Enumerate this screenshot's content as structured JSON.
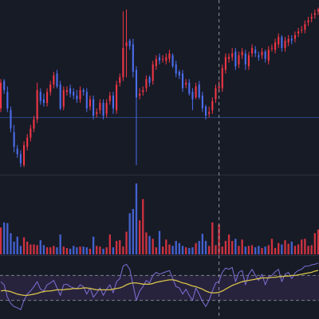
{
  "theme": {
    "background": "#171b26",
    "rsi_band_fill": "#2a2540",
    "up_color": "#f23645",
    "down_color": "#4c6ef0",
    "separator": "#2b2f3c",
    "crosshair": "#b2b5be",
    "rsi_line": "#7e6fd6",
    "signal_line": "#d6c34a",
    "rsi_band_line": "#7a7f8c",
    "price_level_line": "#2c4a8a"
  },
  "chart_data": [
    {
      "type": "candlestick",
      "panel": "price",
      "grid": false,
      "x": [
        1,
        2,
        3,
        4,
        5,
        6,
        7,
        8,
        9,
        10,
        11,
        12,
        13,
        14,
        15,
        16,
        17,
        18,
        19,
        20,
        21,
        22,
        23,
        24,
        25,
        26,
        27,
        28,
        29,
        30,
        31,
        32,
        33,
        34,
        35,
        36,
        37,
        38,
        39,
        40,
        41,
        42,
        43,
        44,
        45,
        46,
        47,
        48,
        49,
        50,
        51,
        52,
        53,
        54,
        55,
        56,
        57,
        58,
        59,
        60,
        61,
        62,
        63,
        64,
        65,
        66,
        67,
        68,
        69,
        70,
        71,
        72,
        73,
        74,
        75,
        76,
        77,
        78,
        79,
        80,
        81,
        82,
        83,
        84,
        85,
        86,
        87,
        88,
        89,
        90,
        91,
        92,
        93,
        94,
        95,
        96,
        97
      ],
      "open": [
        61,
        76,
        70,
        60,
        48,
        39,
        36,
        30,
        40,
        45,
        50,
        55,
        70,
        66,
        64,
        70,
        74,
        80,
        74,
        62,
        70,
        72,
        70,
        68,
        66,
        71,
        70,
        62,
        66,
        58,
        60,
        64,
        58,
        65,
        68,
        60,
        75,
        78,
        95,
        98,
        96,
        82,
        68,
        70,
        72,
        78,
        76,
        84,
        89,
        88,
        87,
        88,
        90,
        85,
        81,
        80,
        74,
        75,
        70,
        67,
        74,
        68,
        62,
        58,
        60,
        66,
        72,
        72,
        82,
        88,
        89,
        92,
        85,
        90,
        91,
        84,
        91,
        93,
        90,
        90,
        92,
        87,
        94,
        93,
        96,
        100,
        94,
        97,
        99,
        99,
        102,
        104,
        104,
        108,
        110,
        112,
        114
      ],
      "close": [
        75,
        71,
        61,
        50,
        40,
        36,
        31,
        41,
        45,
        50,
        55,
        71,
        65,
        64,
        70,
        74,
        79,
        73,
        61,
        71,
        71,
        69,
        68,
        66,
        71,
        70,
        61,
        66,
        57,
        59,
        64,
        57,
        64,
        68,
        61,
        74,
        78,
        94,
        97,
        95,
        81,
        67,
        69,
        71,
        77,
        75,
        85,
        88,
        87,
        88,
        89,
        91,
        84,
        80,
        79,
        72,
        75,
        69,
        66,
        73,
        67,
        61,
        57,
        59,
        65,
        72,
        73,
        83,
        89,
        89,
        91,
        84,
        90,
        92,
        85,
        90,
        94,
        91,
        89,
        92,
        88,
        93,
        94,
        97,
        100,
        94,
        98,
        99,
        98,
        101,
        103,
        104,
        107,
        109,
        111,
        113,
        115
      ],
      "high": [
        77,
        77,
        73,
        62,
        52,
        41,
        38,
        43,
        47,
        52,
        57,
        75,
        72,
        69,
        72,
        76,
        81,
        82,
        76,
        73,
        73,
        74,
        72,
        71,
        73,
        72,
        72,
        68,
        68,
        61,
        66,
        66,
        66,
        70,
        70,
        76,
        80,
        114,
        115,
        99,
        99,
        84,
        72,
        73,
        79,
        79,
        87,
        90,
        91,
        90,
        91,
        93,
        91,
        87,
        82,
        82,
        77,
        77,
        72,
        75,
        76,
        70,
        63,
        62,
        67,
        74,
        76,
        85,
        91,
        91,
        94,
        94,
        92,
        94,
        93,
        92,
        96,
        95,
        92,
        94,
        93,
        95,
        96,
        99,
        102,
        101,
        100,
        101,
        101,
        103,
        105,
        106,
        109,
        111,
        113,
        115,
        116
      ],
      "low": [
        59,
        69,
        59,
        48,
        37,
        34,
        29,
        29,
        38,
        43,
        48,
        53,
        63,
        62,
        62,
        68,
        72,
        72,
        60,
        60,
        68,
        67,
        66,
        64,
        64,
        68,
        59,
        60,
        55,
        56,
        58,
        55,
        56,
        63,
        58,
        58,
        73,
        76,
        78,
        93,
        78,
        30,
        66,
        68,
        70,
        73,
        74,
        82,
        85,
        86,
        85,
        86,
        83,
        78,
        77,
        70,
        72,
        68,
        60,
        66,
        66,
        59,
        55,
        56,
        58,
        64,
        70,
        70,
        80,
        86,
        87,
        82,
        83,
        88,
        82,
        82,
        89,
        89,
        87,
        88,
        86,
        85,
        92,
        91,
        94,
        92,
        92,
        95,
        96,
        97,
        100,
        102,
        102,
        106,
        108,
        110,
        112
      ],
      "price_level": 56,
      "crosshair_x": 67
    },
    {
      "type": "bar",
      "panel": "volume",
      "grid": false,
      "values": [
        38,
        45,
        44,
        30,
        18,
        25,
        12,
        24,
        18,
        14,
        14,
        13,
        20,
        13,
        10,
        10,
        12,
        10,
        28,
        11,
        9,
        8,
        12,
        10,
        11,
        11,
        10,
        8,
        25,
        12,
        11,
        8,
        10,
        28,
        10,
        19,
        20,
        11,
        32,
        58,
        64,
        100,
        48,
        78,
        31,
        26,
        22,
        10,
        33,
        11,
        21,
        14,
        12,
        19,
        16,
        12,
        10,
        9,
        10,
        16,
        19,
        29,
        19,
        12,
        45,
        13,
        42,
        11,
        19,
        28,
        19,
        22,
        12,
        21,
        11,
        12,
        13,
        10,
        12,
        9,
        11,
        13,
        22,
        9,
        16,
        14,
        20,
        15,
        18,
        12,
        14,
        21,
        22,
        12,
        13,
        30,
        35
      ],
      "directions": [
        "up",
        "down",
        "down",
        "down",
        "down",
        "down",
        "down",
        "up",
        "up",
        "up",
        "up",
        "up",
        "down",
        "down",
        "up",
        "up",
        "up",
        "down",
        "down",
        "up",
        "up",
        "down",
        "down",
        "down",
        "up",
        "down",
        "down",
        "up",
        "down",
        "up",
        "up",
        "down",
        "up",
        "up",
        "down",
        "up",
        "up",
        "up",
        "up",
        "down",
        "down",
        "down",
        "up",
        "up",
        "up",
        "down",
        "up",
        "up",
        "down",
        "up",
        "up",
        "up",
        "down",
        "down",
        "down",
        "down",
        "up",
        "down",
        "down",
        "up",
        "down",
        "down",
        "down",
        "up",
        "up",
        "up",
        "up",
        "up",
        "up",
        "up",
        "up",
        "down",
        "up",
        "up",
        "down",
        "up",
        "up",
        "down",
        "down",
        "up",
        "down",
        "up",
        "up",
        "up",
        "up",
        "down",
        "up",
        "up",
        "down",
        "up",
        "up",
        "up",
        "up",
        "up",
        "up",
        "up",
        "up"
      ],
      "crosshair_x": 67
    },
    {
      "type": "line",
      "panel": "oscillator",
      "grid": false,
      "ylim": [
        0,
        100
      ],
      "band_levels": [
        70,
        30
      ],
      "series": [
        {
          "values": [
            60,
            55,
            35,
            25,
            20,
            18,
            15,
            30,
            40,
            45,
            52,
            60,
            48,
            45,
            55,
            58,
            62,
            50,
            38,
            55,
            56,
            52,
            50,
            48,
            55,
            52,
            40,
            50,
            35,
            42,
            50,
            38,
            48,
            55,
            42,
            60,
            65,
            85,
            88,
            80,
            55,
            30,
            45,
            52,
            62,
            58,
            70,
            75,
            72,
            74,
            76,
            78,
            65,
            52,
            50,
            40,
            48,
            38,
            30,
            50,
            40,
            28,
            20,
            30,
            45,
            58,
            60,
            75,
            82,
            80,
            83,
            60,
            75,
            78,
            55,
            72,
            80,
            70,
            62,
            72,
            55,
            68,
            70,
            76,
            80,
            60,
            72,
            75,
            65,
            74,
            78,
            80,
            85,
            85,
            87,
            88,
            90
          ]
        },
        {
          "values": [
            45,
            46,
            45,
            44,
            42,
            40,
            39,
            38,
            38,
            39,
            40,
            41,
            43,
            44,
            45,
            45,
            46,
            47,
            47,
            47,
            48,
            48,
            49,
            49,
            49,
            50,
            50,
            49,
            48,
            47,
            47,
            47,
            47,
            47,
            48,
            49,
            50,
            52,
            55,
            57,
            58,
            58,
            57,
            56,
            56,
            56,
            57,
            59,
            60,
            61,
            62,
            63,
            63,
            62,
            60,
            58,
            57,
            55,
            53,
            52,
            50,
            48,
            45,
            43,
            42,
            42,
            43,
            45,
            48,
            51,
            54,
            56,
            58,
            60,
            61,
            62,
            63,
            64,
            65,
            66,
            66,
            66,
            67,
            67,
            68,
            68,
            69,
            69,
            70,
            70,
            71,
            72,
            73,
            74,
            75,
            77,
            78
          ]
        }
      ],
      "crosshair_x": 67
    }
  ]
}
